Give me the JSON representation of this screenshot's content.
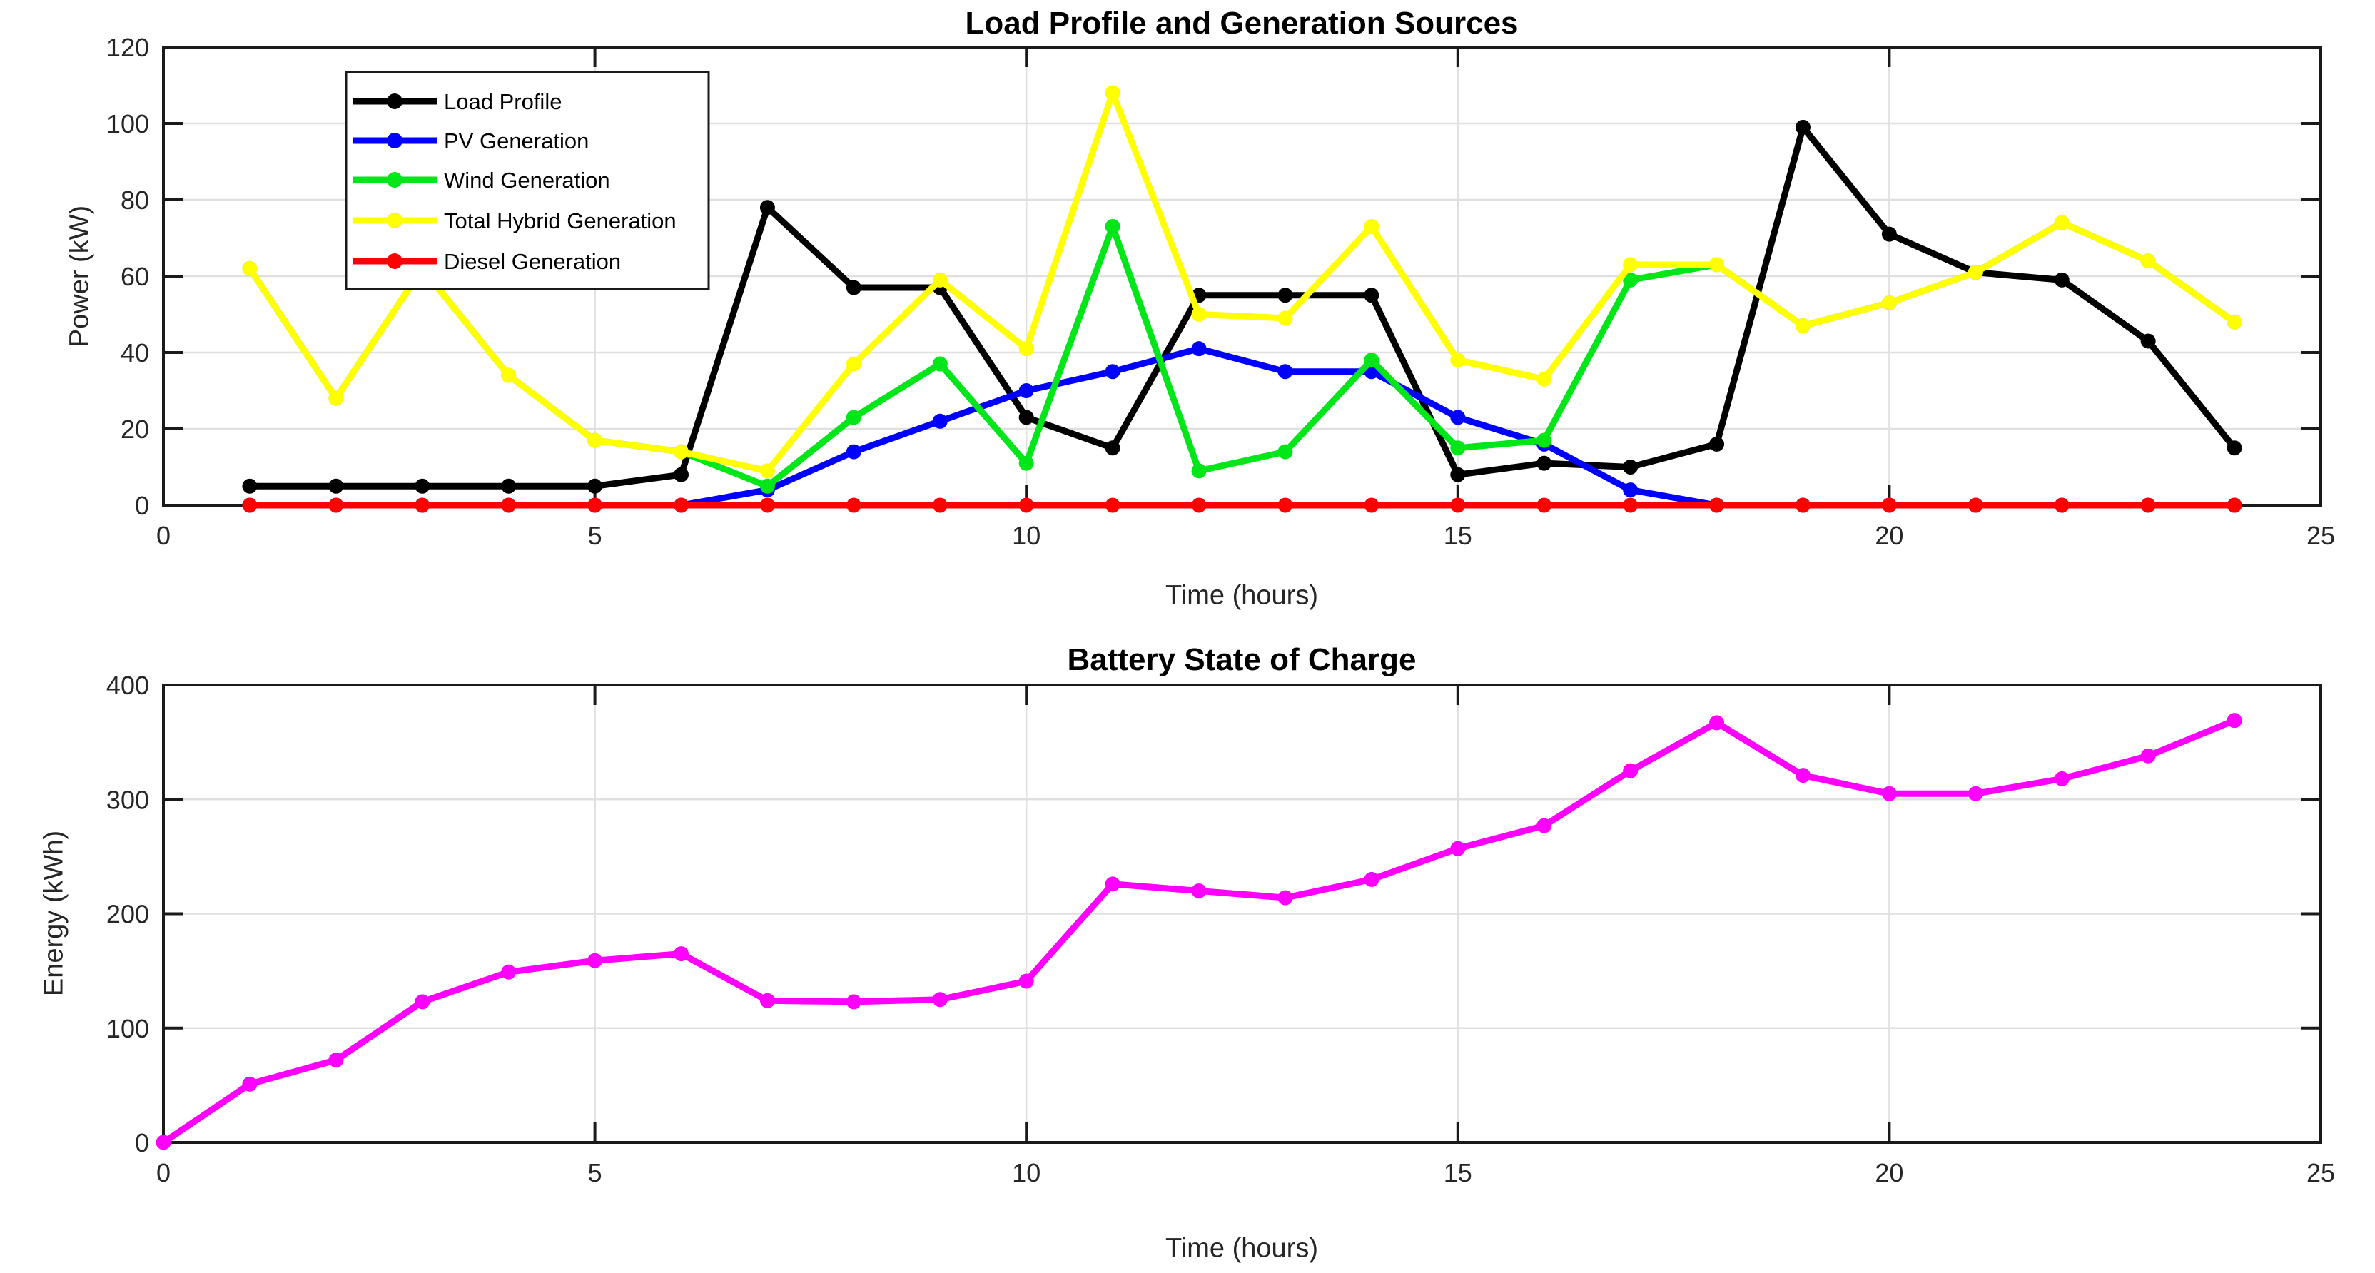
{
  "chart_data": [
    {
      "type": "line",
      "title": "Load Profile and Generation Sources",
      "xlabel": "Time (hours)",
      "ylabel": "Power (kW)",
      "xlim": [
        0,
        25
      ],
      "ylim": [
        0,
        120
      ],
      "xticks": [
        0,
        5,
        10,
        15,
        20,
        25
      ],
      "yticks": [
        0,
        20,
        40,
        60,
        80,
        100,
        120
      ],
      "grid": true,
      "legend_position": "upper-left",
      "series": [
        {
          "name": "Load Profile",
          "color": "#000000",
          "marker": "circle",
          "x": [
            1,
            2,
            3,
            4,
            5,
            6,
            7,
            8,
            9,
            10,
            11,
            12,
            13,
            14,
            15,
            16,
            17,
            18,
            19,
            20,
            21,
            22,
            23,
            24
          ],
          "values": [
            5,
            5,
            5,
            5,
            5,
            8,
            78,
            57,
            57,
            23,
            15,
            55,
            55,
            55,
            8,
            11,
            10,
            16,
            99,
            71,
            61,
            59,
            43,
            15
          ]
        },
        {
          "name": "PV Generation",
          "color": "#0000FF",
          "marker": "circle",
          "x": [
            1,
            2,
            3,
            4,
            5,
            6,
            7,
            8,
            9,
            10,
            11,
            12,
            13,
            14,
            15,
            16,
            17,
            18,
            19,
            20,
            21,
            22,
            23,
            24
          ],
          "values": [
            0,
            0,
            0,
            0,
            0,
            0,
            4,
            14,
            22,
            30,
            35,
            41,
            35,
            35,
            23,
            16,
            4,
            0,
            0,
            0,
            0,
            0,
            0,
            0
          ]
        },
        {
          "name": "Wind Generation",
          "color": "#00E619",
          "marker": "circle",
          "x": [
            1,
            2,
            3,
            4,
            5,
            6,
            7,
            8,
            9,
            10,
            11,
            12,
            13,
            14,
            15,
            16,
            17,
            18,
            19,
            20,
            21,
            22,
            23,
            24
          ],
          "values": [
            62,
            28,
            62,
            34,
            17,
            14,
            5,
            23,
            37,
            11,
            73,
            9,
            14,
            38,
            15,
            17,
            59,
            63,
            47,
            53,
            61,
            74,
            64,
            48
          ]
        },
        {
          "name": "Total Hybrid Generation",
          "color": "#FFFF00",
          "marker": "circle",
          "x": [
            1,
            2,
            3,
            4,
            5,
            6,
            7,
            8,
            9,
            10,
            11,
            12,
            13,
            14,
            15,
            16,
            17,
            18,
            19,
            20,
            21,
            22,
            23,
            24
          ],
          "values": [
            62,
            28,
            62,
            34,
            17,
            14,
            9,
            37,
            59,
            41,
            108,
            50,
            49,
            73,
            38,
            33,
            63,
            63,
            47,
            53,
            61,
            74,
            64,
            48
          ]
        },
        {
          "name": "Diesel Generation",
          "color": "#FF0000",
          "marker": "circle",
          "x": [
            1,
            2,
            3,
            4,
            5,
            6,
            7,
            8,
            9,
            10,
            11,
            12,
            13,
            14,
            15,
            16,
            17,
            18,
            19,
            20,
            21,
            22,
            23,
            24
          ],
          "values": [
            0,
            0,
            0,
            0,
            0,
            0,
            0,
            0,
            0,
            0,
            0,
            0,
            0,
            0,
            0,
            0,
            0,
            0,
            0,
            0,
            0,
            0,
            0,
            0
          ]
        }
      ]
    },
    {
      "type": "line",
      "title": "Battery State of Charge",
      "xlabel": "Time (hours)",
      "ylabel": "Energy (kWh)",
      "xlim": [
        0,
        25
      ],
      "ylim": [
        0,
        400
      ],
      "xticks": [
        0,
        5,
        10,
        15,
        20,
        25
      ],
      "yticks": [
        0,
        100,
        200,
        300,
        400
      ],
      "grid": true,
      "legend_position": null,
      "series": [
        {
          "name": "Battery SOC",
          "color": "#FF00FF",
          "marker": "circle",
          "x": [
            0,
            1,
            2,
            3,
            4,
            5,
            6,
            7,
            8,
            9,
            10,
            11,
            12,
            13,
            14,
            15,
            16,
            17,
            18,
            19,
            20,
            21,
            22,
            23,
            24
          ],
          "values": [
            0,
            51,
            72,
            123,
            149,
            159,
            165,
            124,
            123,
            125,
            141,
            226,
            220,
            214,
            230,
            257,
            277,
            325,
            367,
            321,
            305,
            305,
            318,
            338,
            369
          ]
        }
      ]
    }
  ],
  "style": {
    "grid_color": "#E0E0E0",
    "axis_color": "#1A1A1A",
    "tick_label_color": "#262626",
    "background": "#FFFFFF"
  }
}
